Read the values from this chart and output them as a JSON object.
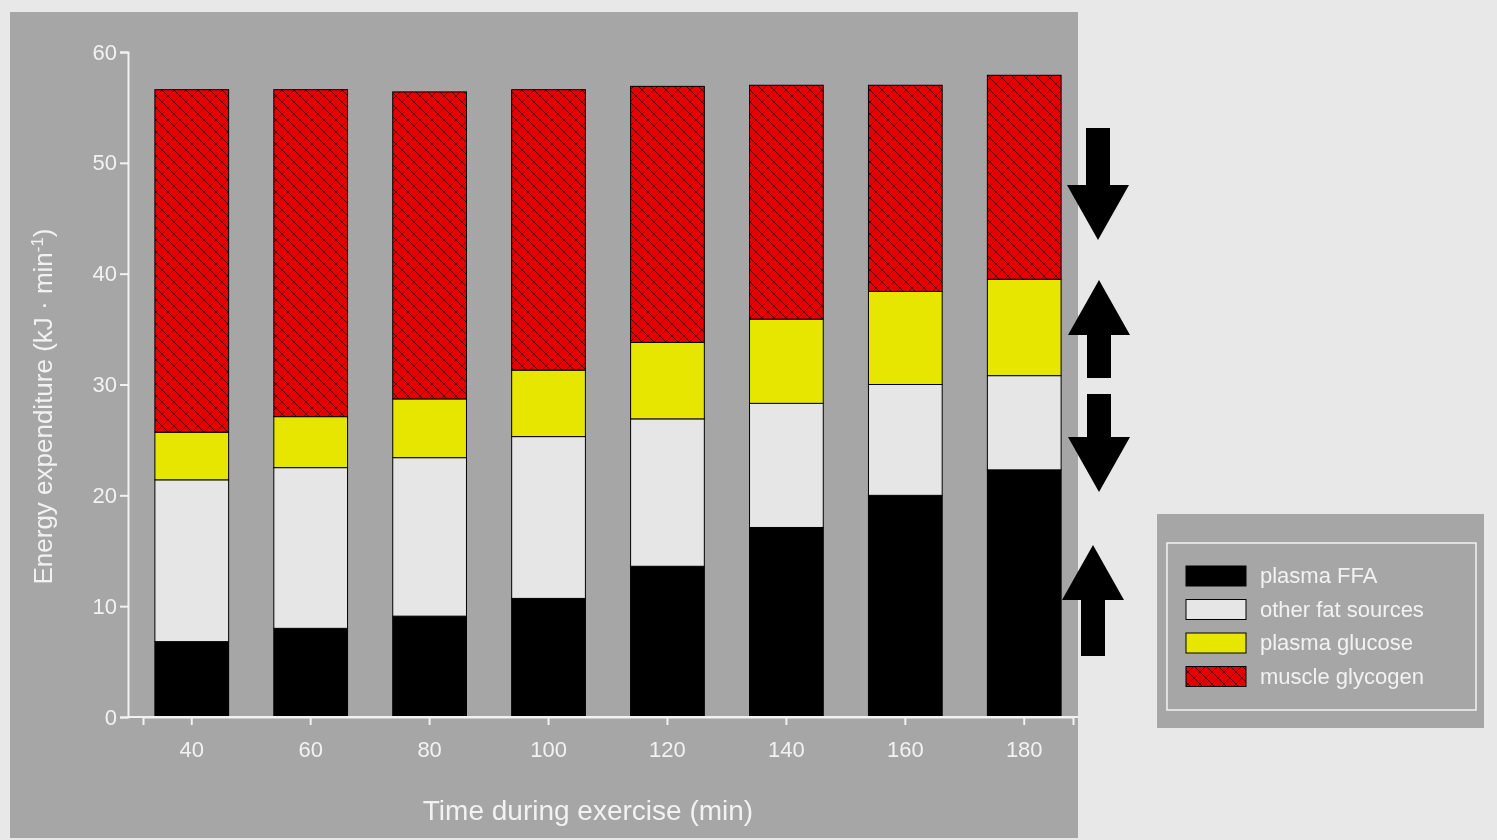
{
  "chart_data": {
    "type": "bar",
    "stacked": true,
    "xlabel": "Time during exercise (min)",
    "ylabel": "Energy expenditure (kJ · min$^{-1}$)",
    "categories": [
      "40",
      "60",
      "80",
      "100",
      "120",
      "140",
      "160",
      "180"
    ],
    "ylim": [
      0,
      60
    ],
    "yticks": [
      0,
      10,
      20,
      30,
      40,
      50,
      60
    ],
    "grid": false,
    "legend": "right",
    "series": [
      {
        "name": "plasma FFA",
        "color": "#000000",
        "values": [
          6.8,
          8.0,
          9.1,
          10.7,
          13.6,
          17.1,
          20.0,
          22.3
        ]
      },
      {
        "name": "other fat sources",
        "color": "#e6e6e6",
        "values": [
          14.6,
          14.5,
          14.3,
          14.6,
          13.3,
          11.2,
          10.0,
          8.5
        ]
      },
      {
        "name": "plasma glucose",
        "color": "#e6e600",
        "values": [
          4.3,
          4.6,
          5.3,
          6.0,
          6.9,
          7.6,
          8.4,
          8.7
        ]
      },
      {
        "name": "muscle glycogen",
        "color": "#e60000",
        "values": [
          30.9,
          29.5,
          27.7,
          25.3,
          23.1,
          21.1,
          18.6,
          18.4
        ]
      }
    ]
  }
}
